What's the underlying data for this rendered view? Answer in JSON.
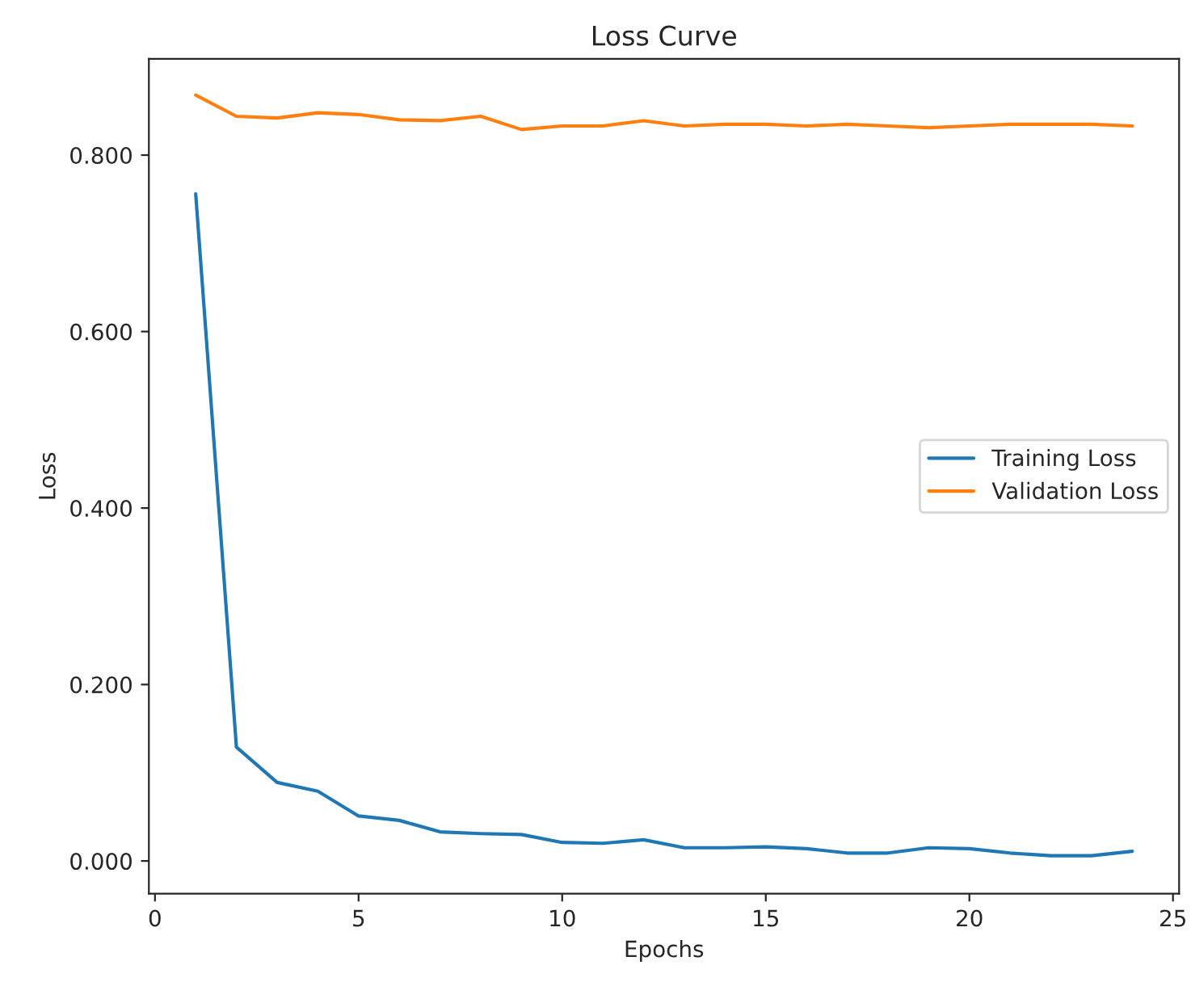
{
  "chart_data": {
    "type": "line",
    "title": "Loss Curve",
    "xlabel": "Epochs",
    "ylabel": "Loss",
    "x": [
      1,
      2,
      3,
      4,
      5,
      6,
      7,
      8,
      9,
      10,
      11,
      12,
      13,
      14,
      15,
      16,
      17,
      18,
      19,
      20,
      21,
      22,
      23,
      24
    ],
    "series": [
      {
        "name": "Training Loss",
        "color": "#1f77b4",
        "values": [
          0.756,
          0.129,
          0.089,
          0.079,
          0.051,
          0.046,
          0.033,
          0.031,
          0.03,
          0.021,
          0.02,
          0.024,
          0.015,
          0.015,
          0.016,
          0.014,
          0.009,
          0.009,
          0.015,
          0.014,
          0.009,
          0.006,
          0.006,
          0.011
        ]
      },
      {
        "name": "Validation Loss",
        "color": "#ff7f0e",
        "values": [
          0.868,
          0.844,
          0.842,
          0.848,
          0.846,
          0.84,
          0.839,
          0.844,
          0.829,
          0.833,
          0.833,
          0.839,
          0.833,
          0.835,
          0.835,
          0.833,
          0.835,
          0.833,
          0.831,
          0.833,
          0.835,
          0.835,
          0.835,
          0.833
        ]
      }
    ],
    "xlim": [
      -0.15,
      25.15
    ],
    "xticks": [
      0,
      5,
      10,
      15,
      20,
      25
    ],
    "ylim": [
      -0.037,
      0.909
    ],
    "yticks": [
      {
        "value": 0,
        "label": "0.000"
      },
      {
        "value": 0.2,
        "label": "0.200"
      },
      {
        "value": 0.4,
        "label": "0.400"
      },
      {
        "value": 0.6,
        "label": "0.600"
      },
      {
        "value": 0.8,
        "label": "0.800"
      }
    ],
    "grid": false,
    "legend": "right",
    "marker": "none",
    "line_style": "solid"
  }
}
